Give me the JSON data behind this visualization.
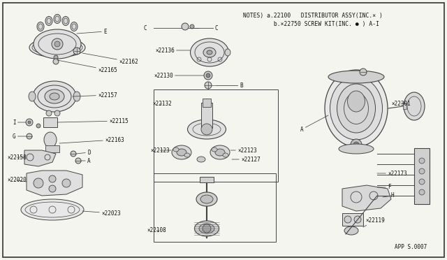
{
  "bg_color": "#f5f5f0",
  "border_color": "#333333",
  "line_color": "#444444",
  "text_color": "#111111",
  "fig_width": 6.4,
  "fig_height": 3.72,
  "dpi": 100,
  "notes_line1": "NOTES) a.22100   DISTRIBUTOR ASSY(INC.× )",
  "notes_line2": "         b.×22750 SCREW KIT(INC. ● ) A-I",
  "app_code": "APP S.0007",
  "label_fontsize": 5.5,
  "mono_font": "DejaVu Sans Mono"
}
